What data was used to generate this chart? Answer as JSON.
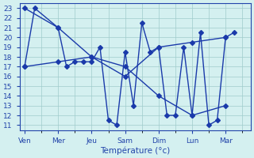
{
  "title": "Température (°c)",
  "background_color": "#d4f0f0",
  "grid_color": "#a0cccc",
  "line_color": "#1a3aaa",
  "ylim": [
    10.5,
    23.5
  ],
  "yticks": [
    11,
    12,
    13,
    14,
    15,
    16,
    17,
    18,
    19,
    20,
    21,
    22,
    23
  ],
  "x_labels": [
    "Ven",
    "Mer",
    "Jeu",
    "Sam",
    "Dim",
    "Lun",
    "Mar"
  ],
  "x_tick_positions": [
    0,
    2,
    4,
    6,
    8,
    10,
    12
  ],
  "xlim": [
    -0.3,
    13.5
  ],
  "series_hi_x": [
    0,
    2,
    4,
    6,
    8,
    10,
    12
  ],
  "series_hi_y": [
    23,
    21,
    18,
    17,
    14,
    12,
    13
  ],
  "series_lo_x": [
    0,
    2,
    4,
    6,
    8,
    10,
    12
  ],
  "series_lo_y": [
    17,
    17.5,
    18,
    16,
    19,
    19.5,
    20
  ],
  "series_daily_x": [
    0,
    0.6,
    2,
    2.5,
    3.0,
    3.5,
    4.0,
    4.5,
    5.0,
    5.5,
    6.0,
    6.5,
    7.0,
    7.5,
    8.0,
    8.5,
    9.0,
    9.5,
    10.0,
    10.5,
    11.0,
    11.5,
    12.0,
    12.5
  ],
  "series_daily_y": [
    17,
    23,
    21,
    17,
    17.5,
    17.5,
    17.5,
    19,
    11.5,
    11,
    18.5,
    13,
    21.5,
    18.5,
    19,
    12,
    12,
    19,
    12,
    20.5,
    11,
    11.5,
    20,
    20.5
  ],
  "marker_size": 3,
  "line_width": 1.0
}
